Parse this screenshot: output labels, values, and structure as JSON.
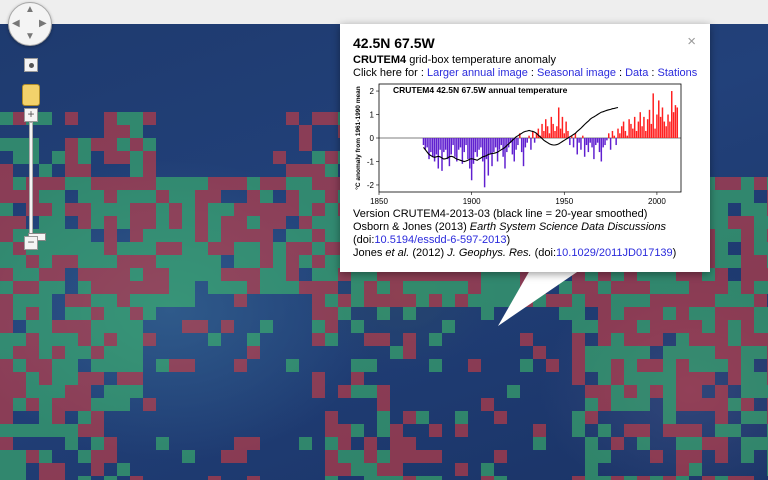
{
  "map": {
    "pan_up_icon": "arrow-up-icon",
    "zoom_in_label": "+",
    "zoom_out_label": "−",
    "colors": {
      "warm": "#e23c3c",
      "cool": "#3fc46a"
    }
  },
  "popup": {
    "title": "42.5N 67.5W",
    "subtitle_bold": "CRUTEM4",
    "subtitle_rest": " grid-box temperature anomaly",
    "links_prefix": "Click here for : ",
    "links": [
      "Larger annual image",
      "Seasonal image",
      "Data",
      "Stations"
    ],
    "link_separator": " : ",
    "close_label": "×",
    "notes": {
      "version": "Version CRUTEM4-2013-03 (black line = 20-year smoothed)",
      "ref1_authors": "Osborn & Jones (2013) ",
      "ref1_journal": "Earth System Science Data Discussions",
      "ref1_doi_prefix": "(doi:",
      "ref1_doi": "10.5194/essdd-6-597-2013",
      "ref1_doi_suffix": ")",
      "ref2_authors_a": "Jones ",
      "ref2_etal": "et al.",
      "ref2_year": " (2012) ",
      "ref2_journal": "J. Geophys. Res.",
      "ref2_doi_prefix": " (doi:",
      "ref2_doi": "10.1029/2011JD017139",
      "ref2_doi_suffix": ")"
    }
  },
  "chart_data": {
    "type": "bar",
    "title": "CRUTEM4 42.5N 67.5W annual temperature",
    "xlabel": "",
    "ylabel": "°C anomaly from 1961-1990 mean",
    "xlim": [
      1850,
      2013
    ],
    "ylim": [
      -2.3,
      2.3
    ],
    "xticks": [
      1850,
      1900,
      1950,
      2000
    ],
    "yticks": [
      -2,
      -1,
      0,
      1,
      2
    ],
    "positive_color": "#ff2020",
    "negative_color": "#6020d0",
    "grid": false,
    "x_start": 1874,
    "values": [
      -0.3,
      -0.5,
      -0.4,
      -0.9,
      -0.6,
      -0.8,
      -1.0,
      -0.7,
      -1.3,
      -0.5,
      -1.4,
      -0.6,
      -0.5,
      -0.9,
      -1.2,
      -0.7,
      -0.3,
      -0.8,
      -1.0,
      -0.5,
      -0.4,
      -1.1,
      -0.6,
      -0.3,
      -0.9,
      -1.3,
      -1.8,
      -1.1,
      -0.6,
      -0.8,
      -0.5,
      -0.4,
      -1.0,
      -2.1,
      -0.9,
      -1.6,
      -0.7,
      -1.2,
      -0.6,
      -0.4,
      -1.0,
      -0.5,
      -0.3,
      -0.8,
      -1.3,
      -0.6,
      -0.4,
      -0.2,
      -0.7,
      -1.0,
      -0.5,
      -0.3,
      0.2,
      -0.6,
      -1.2,
      -0.4,
      -0.2,
      0.1,
      -0.5,
      0.3,
      -0.2,
      0.2,
      0.4,
      0.1,
      0.6,
      0.3,
      0.8,
      0.5,
      0.2,
      0.9,
      0.6,
      0.3,
      0.5,
      1.3,
      0.4,
      0.9,
      0.2,
      0.7,
      0.3,
      -0.3,
      0.1,
      -0.4,
      0.2,
      -0.7,
      -0.2,
      -0.5,
      0.1,
      -0.8,
      -0.3,
      -0.6,
      -0.2,
      -0.4,
      -0.9,
      -0.3,
      -0.2,
      -0.6,
      -1.0,
      -0.4,
      -0.3,
      -0.1,
      0.2,
      -0.5,
      0.3,
      0.1,
      -0.3,
      0.4,
      0.2,
      0.5,
      0.7,
      0.3,
      0.1,
      0.8,
      0.6,
      0.4,
      0.9,
      0.3,
      0.7,
      1.1,
      0.5,
      0.9,
      0.3,
      0.8,
      1.2,
      0.6,
      1.9,
      0.4,
      1.0,
      1.6,
      0.9,
      1.3,
      0.7,
      0.5,
      1.0,
      0.7,
      2.0,
      1.1,
      1.4,
      1.3
    ],
    "smooth": [
      -0.4,
      -0.5,
      -0.6,
      -0.7,
      -0.75,
      -0.8,
      -0.82,
      -0.8,
      -0.78,
      -0.8,
      -0.85,
      -0.9,
      -0.88,
      -0.85,
      -0.8,
      -0.78,
      -0.8,
      -0.85,
      -0.9,
      -0.92,
      -0.95,
      -0.98,
      -1.0,
      -0.98,
      -0.95,
      -0.9,
      -0.88,
      -0.9,
      -0.92,
      -0.95,
      -0.9,
      -0.85,
      -0.8,
      -0.78,
      -0.75,
      -0.7,
      -0.68,
      -0.66,
      -0.65,
      -0.63,
      -0.6,
      -0.55,
      -0.5,
      -0.45,
      -0.4,
      -0.32,
      -0.25,
      -0.18,
      -0.1,
      -0.02,
      0.05,
      0.1,
      0.15,
      0.2,
      0.25,
      0.28,
      0.3,
      0.32,
      0.3,
      0.28,
      0.25,
      0.2,
      0.12,
      0.05,
      -0.02,
      -0.1,
      -0.15,
      -0.2,
      -0.25,
      -0.28,
      -0.3,
      -0.3,
      -0.28,
      -0.25,
      -0.2,
      -0.15,
      -0.1,
      -0.05,
      0.0,
      0.05,
      0.1,
      0.15,
      0.2,
      0.28,
      0.35,
      0.42,
      0.5,
      0.58,
      0.65,
      0.72,
      0.8,
      0.86,
      0.9,
      0.95,
      1.0,
      1.05,
      1.1,
      1.12,
      1.15,
      1.18,
      1.2,
      1.22,
      1.25,
      1.26,
      1.28,
      1.3
    ]
  }
}
